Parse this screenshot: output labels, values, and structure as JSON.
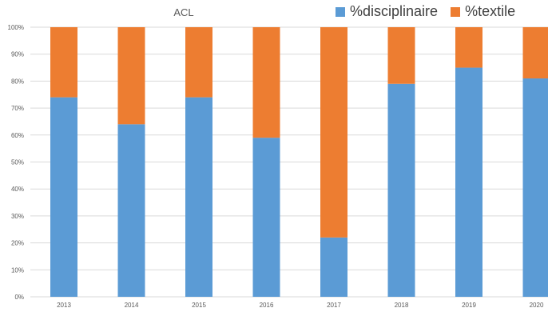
{
  "chart_data": {
    "type": "bar",
    "stacked": true,
    "title": "ACL",
    "categories": [
      "2013",
      "2014",
      "2015",
      "2016",
      "2017",
      "2018",
      "2019",
      "2020"
    ],
    "series": [
      {
        "name": "%disciplinaire",
        "color": "#5B9BD5",
        "values": [
          74,
          64,
          74,
          59,
          22,
          79,
          85,
          81
        ]
      },
      {
        "name": "%textile",
        "color": "#ED7D31",
        "values": [
          26,
          36,
          26,
          41,
          78,
          21,
          15,
          19
        ]
      }
    ],
    "ylim": [
      0,
      100
    ],
    "yticks": [
      "0%",
      "10%",
      "20%",
      "30%",
      "40%",
      "50%",
      "60%",
      "70%",
      "80%",
      "90%",
      "100%"
    ],
    "grid": true,
    "legend_position": "top-right"
  }
}
